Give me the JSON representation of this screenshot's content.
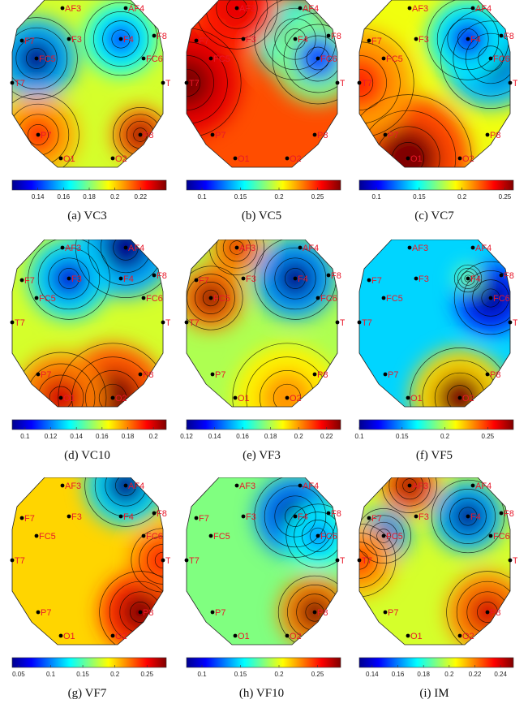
{
  "electrodes": [
    "AF3",
    "AF4",
    "F7",
    "F3",
    "F4",
    "F8",
    "FC5",
    "FC6",
    "T7",
    "T8",
    "P7",
    "P8",
    "O1",
    "O2"
  ],
  "label_color": "#e8182a",
  "colormap": [
    "#00008f",
    "#0000ff",
    "#0080ff",
    "#00ffff",
    "#80ff80",
    "#ffff00",
    "#ff8000",
    "#ff0000",
    "#800000"
  ],
  "chart_data": [
    {
      "type": "heatmap",
      "caption": "(a) VC3",
      "colorbar": {
        "range": [
          0.12,
          0.24
        ],
        "ticks": [
          "0.14",
          "0.16",
          "0.18",
          "0.2",
          "0.22"
        ]
      },
      "blobs": [
        {
          "electrode": "FC5",
          "value": 0.12,
          "spread": 45
        },
        {
          "electrode": "F4",
          "value": 0.14,
          "spread": 40
        },
        {
          "electrode": "P8",
          "value": 0.24,
          "spread": 30
        },
        {
          "electrode": "P7",
          "value": 0.22,
          "spread": 45
        }
      ],
      "baseline": 0.19
    },
    {
      "type": "heatmap",
      "caption": "(b) VC5",
      "colorbar": {
        "range": [
          0.08,
          0.28
        ],
        "ticks": [
          "0.1",
          "0.15",
          "0.2",
          "0.25"
        ]
      },
      "blobs": [
        {
          "electrode": "F4",
          "value": 0.08,
          "spread": 45
        },
        {
          "electrode": "T7",
          "value": 0.28,
          "spread": 60
        },
        {
          "electrode": "AF3",
          "value": 0.26,
          "spread": 45
        },
        {
          "electrode": "FC6",
          "value": 0.12,
          "spread": 50
        }
      ],
      "baseline": 0.24
    },
    {
      "type": "heatmap",
      "caption": "(c) VC7",
      "colorbar": {
        "range": [
          0.08,
          0.26
        ],
        "ticks": [
          "0.1",
          "0.15",
          "0.2",
          "0.25"
        ]
      },
      "blobs": [
        {
          "electrode": "FC6",
          "value": 0.08,
          "spread": 55
        },
        {
          "electrode": "F4",
          "value": 0.1,
          "spread": 45
        },
        {
          "electrode": "O1",
          "value": 0.26,
          "spread": 70
        },
        {
          "electrode": "T7",
          "value": 0.23,
          "spread": 60
        }
      ],
      "baseline": 0.19
    },
    {
      "type": "heatmap",
      "caption": "(d) VC10",
      "colorbar": {
        "range": [
          0.09,
          0.21
        ],
        "ticks": [
          "0.1",
          "0.12",
          "0.14",
          "0.16",
          "0.18",
          "0.2"
        ]
      },
      "blobs": [
        {
          "electrode": "AF4",
          "value": 0.09,
          "spread": 55
        },
        {
          "electrode": "F3",
          "value": 0.1,
          "spread": 45
        },
        {
          "electrode": "O2",
          "value": 0.21,
          "spread": 60
        },
        {
          "electrode": "O1",
          "value": 0.2,
          "spread": 50
        }
      ],
      "baseline": 0.16
    },
    {
      "type": "heatmap",
      "caption": "(e) VF3",
      "colorbar": {
        "range": [
          0.12,
          0.23
        ],
        "ticks": [
          "0.12",
          "0.14",
          "0.16",
          "0.18",
          "0.2",
          "0.22"
        ]
      },
      "blobs": [
        {
          "electrode": "F4",
          "value": 0.12,
          "spread": 45
        },
        {
          "electrode": "FC5",
          "value": 0.23,
          "spread": 35
        },
        {
          "electrode": "AF3",
          "value": 0.22,
          "spread": 30
        },
        {
          "electrode": "O2",
          "value": 0.2,
          "spread": 60
        }
      ],
      "baseline": 0.18
    },
    {
      "type": "heatmap",
      "caption": "(f) VF5",
      "colorbar": {
        "range": [
          0.1,
          0.28
        ],
        "ticks": [
          "0.1",
          "0.15",
          "0.2",
          "0.25"
        ]
      },
      "blobs": [
        {
          "electrode": "FC6",
          "value": 0.1,
          "spread": 40
        },
        {
          "electrode": "O2",
          "value": 0.28,
          "spread": 55
        },
        {
          "electrode": "F4",
          "value": 0.2,
          "spread": 15
        }
      ],
      "baseline": 0.16
    },
    {
      "type": "heatmap",
      "caption": "(g) VF7",
      "colorbar": {
        "range": [
          0.04,
          0.28
        ],
        "ticks": [
          "0.05",
          "0.1",
          "0.15",
          "0.2",
          "0.25"
        ]
      },
      "blobs": [
        {
          "electrode": "AF4",
          "value": 0.04,
          "spread": 45
        },
        {
          "electrode": "P8",
          "value": 0.28,
          "spread": 45
        },
        {
          "electrode": "T8",
          "value": 0.25,
          "spread": 35
        }
      ],
      "baseline": 0.2
    },
    {
      "type": "heatmap",
      "caption": "(h) VF10",
      "colorbar": {
        "range": [
          0.08,
          0.28
        ],
        "ticks": [
          "0.1",
          "0.15",
          "0.2",
          "0.25"
        ]
      },
      "blobs": [
        {
          "electrode": "F4",
          "value": 0.08,
          "spread": 45
        },
        {
          "electrode": "P8",
          "value": 0.28,
          "spread": 40
        },
        {
          "electrode": "FC6",
          "value": 0.13,
          "spread": 35
        }
      ],
      "baseline": 0.18
    },
    {
      "type": "heatmap",
      "caption": "(i) IM",
      "colorbar": {
        "range": [
          0.13,
          0.25
        ],
        "ticks": [
          "0.14",
          "0.16",
          "0.18",
          "0.2",
          "0.22",
          "0.24"
        ]
      },
      "blobs": [
        {
          "electrode": "F4",
          "value": 0.13,
          "spread": 40
        },
        {
          "electrode": "FC5",
          "value": 0.13,
          "spread": 30
        },
        {
          "electrode": "AF3",
          "value": 0.25,
          "spread": 30
        },
        {
          "electrode": "P8",
          "value": 0.24,
          "spread": 45
        },
        {
          "electrode": "T7",
          "value": 0.23,
          "spread": 40
        }
      ],
      "baseline": 0.2
    }
  ]
}
